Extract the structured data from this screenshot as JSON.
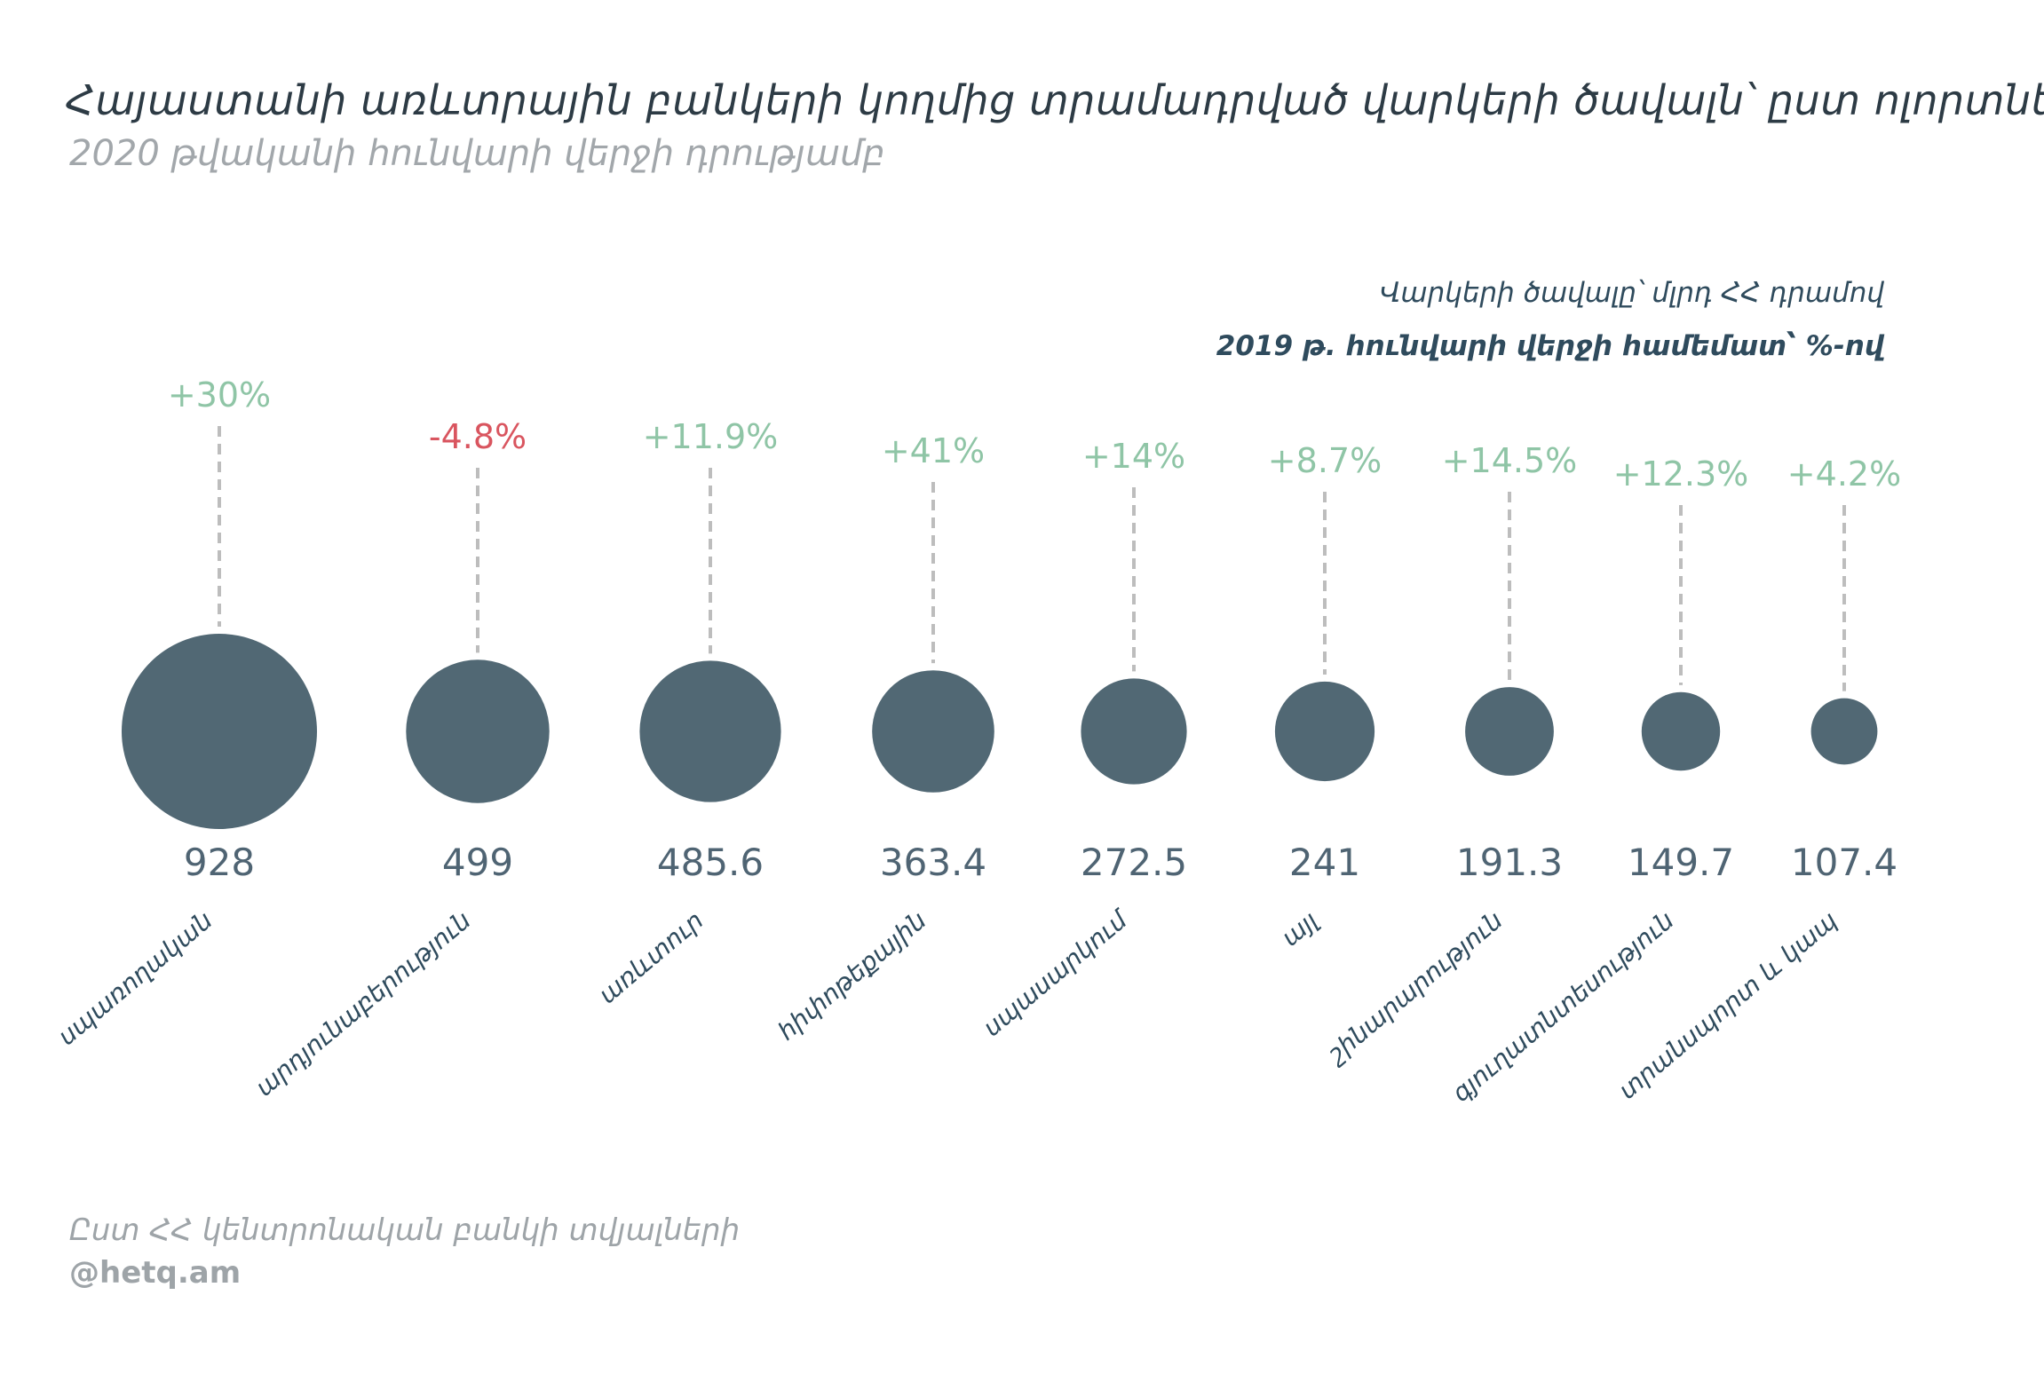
{
  "header": {
    "title": "Հայաստանի առևտրային բանկերի կողմից տրամադրված վարկերի ծավալն՝ ըստ ոլորտների",
    "subtitle": "2020 թվականի հունվարի վերջի դրությամբ"
  },
  "legend": {
    "line1": "Վարկերի ծավալը՝ մլրդ ՀՀ դրամով",
    "line2": "2019 թ. հունվարի վերջի համեմատ՝ %-ով"
  },
  "footer": {
    "source": "Ըստ ՀՀ կենտրոնական բանկի տվյալների",
    "credit": "@hetq.am"
  },
  "colors": {
    "bubble": "#516874",
    "positive": "#8fc5a6",
    "negative": "#d9555f",
    "stem": "#bdbdbd"
  },
  "chart_data": {
    "type": "bubble",
    "categories": [
      "սպառողական",
      "արդյունաբերություն",
      "առևտուր",
      "հիփոթեքային",
      "սպասարկում",
      "այլ",
      "շինարարություն",
      "գյուղատնտեսություն",
      "տրանսպորտ և կապ"
    ],
    "values": [
      928,
      499,
      485.6,
      363.4,
      272.5,
      241,
      191.3,
      149.7,
      107.4
    ],
    "value_labels": [
      "928",
      "499",
      "485.6",
      "363.4",
      "272.5",
      "241",
      "191.3",
      "149.7",
      "107.4"
    ],
    "changes": [
      30,
      -4.8,
      11.9,
      41,
      14,
      8.7,
      14.5,
      12.3,
      4.2
    ],
    "change_labels": [
      "+30%",
      "-4.8%",
      "+11.9%",
      "+41%",
      "+14%",
      "+8.7%",
      "+14.5%",
      "+12.3%",
      "+4.2%"
    ],
    "value_unit": "մլրդ ՀՀ դրամ",
    "change_unit": "%"
  }
}
